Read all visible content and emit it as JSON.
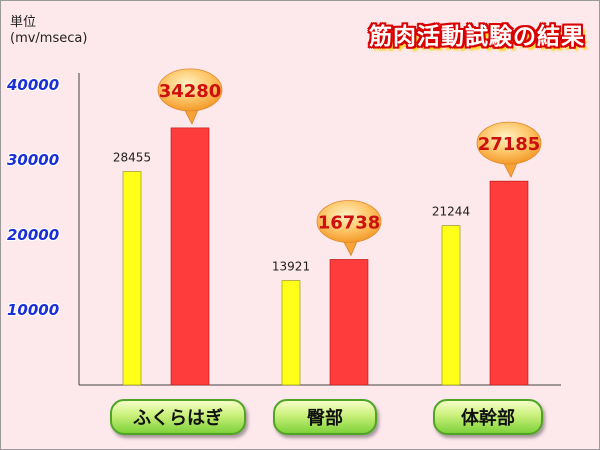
{
  "header": {
    "unit_line1": "単位",
    "unit_line2": "(mv/mseca)",
    "title": "筋肉活動試験の結果"
  },
  "colors": {
    "background": "#fde8ec",
    "bar_yellow": "#ffff1a",
    "bar_red": "#ff3c3c",
    "axis_text": "#1a2fd8",
    "callout": "#ffb347",
    "category_button": "#a8e05a"
  },
  "chart_data": {
    "type": "bar",
    "title": "筋肉活動試験の結果",
    "ylabel": "単位 (mv/mseca)",
    "xlabel": "",
    "categories": [
      "ふくらはぎ",
      "臀部",
      "体幹部"
    ],
    "ylim": [
      0,
      40000
    ],
    "yticks": [
      "10000",
      "20000",
      "30000",
      "40000"
    ],
    "grid": false,
    "series": [
      {
        "color": "#ffff1a",
        "values": [
          28455,
          13921,
          21244
        ],
        "labels": [
          "28455",
          "13921",
          "21244"
        ]
      },
      {
        "color": "#ff3c3c",
        "values": [
          34280,
          16738,
          27185
        ],
        "labels": [
          "34280",
          "16738",
          "27185"
        ]
      }
    ]
  }
}
